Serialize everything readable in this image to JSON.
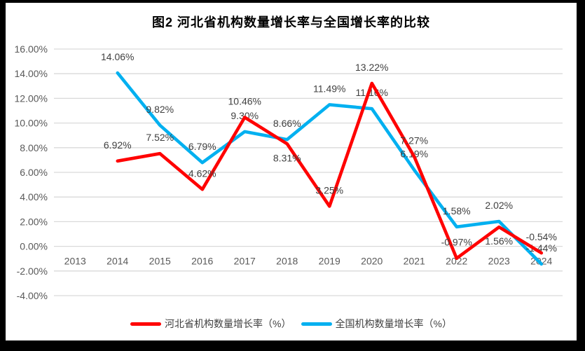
{
  "chart_data": {
    "type": "line",
    "title": "图2 河北省机构数量增长率与全国增长率的比较",
    "categories": [
      "2013",
      "2014",
      "2015",
      "2016",
      "2017",
      "2018",
      "2019",
      "2020",
      "2021",
      "2022",
      "2023",
      "2024"
    ],
    "series": [
      {
        "name": "河北省机构数量增长率（%）",
        "color": "#FF0000",
        "values": [
          null,
          6.92,
          7.52,
          4.62,
          10.46,
          8.31,
          3.25,
          13.22,
          7.27,
          -0.97,
          1.56,
          -0.54
        ],
        "data_labels": [
          null,
          "6.92%",
          "7.52%",
          "4.62%",
          "10.46%",
          "8.31%",
          "3.25%",
          "13.22%",
          "7.27%",
          "-0.97%",
          "1.56%",
          "-0.54%"
        ],
        "label_placement": [
          null,
          "above",
          "above",
          "above",
          "above",
          "below",
          "above",
          "above",
          "above",
          "above",
          "below",
          "above"
        ]
      },
      {
        "name": "全国机构数量增长率（%）",
        "color": "#00B0F0",
        "values": [
          null,
          14.06,
          9.82,
          6.79,
          9.3,
          8.66,
          11.49,
          11.16,
          6.19,
          1.58,
          2.02,
          -1.44
        ],
        "data_labels": [
          null,
          "14.06%",
          "9.82%",
          "6.79%",
          "9.30%",
          "8.66%",
          "11.49%",
          "11.16%",
          "6.19%",
          "1.58%",
          "2.02%",
          "-1.44%"
        ],
        "label_placement": [
          null,
          "above",
          "above",
          "above",
          "above",
          "above",
          "above",
          "above",
          "above",
          "above",
          "above",
          "above"
        ]
      }
    ],
    "ylim": [
      -4,
      16
    ],
    "ytick_step": 2,
    "ytick_labels": [
      "16.00%",
      "14.00%",
      "12.00%",
      "10.00%",
      "8.00%",
      "6.00%",
      "4.00%",
      "2.00%",
      "0.00%",
      "-2.00%",
      "-4.00%"
    ],
    "grid": true,
    "legend_position": "bottom",
    "colors": {
      "grid": "#D9D9D9",
      "axis_text": "#595959",
      "label_text": "#404040",
      "background": "#FFFFFF",
      "frame": "#000000"
    }
  }
}
